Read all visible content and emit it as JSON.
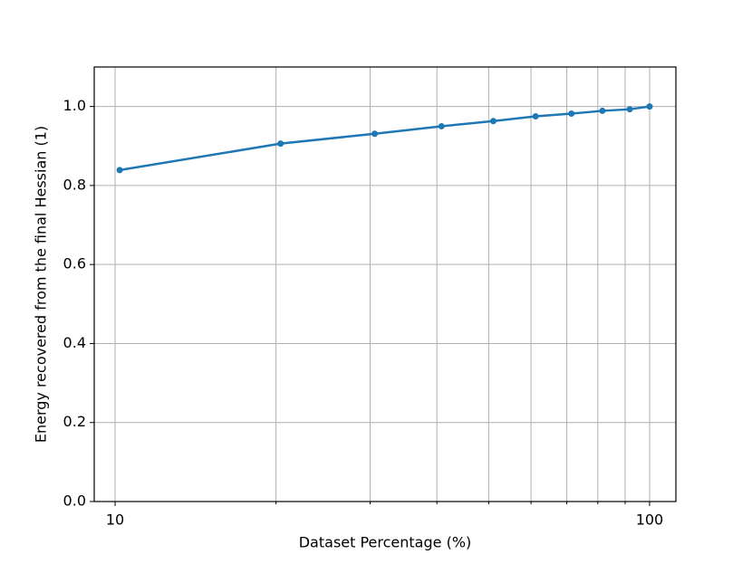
{
  "chart_data": {
    "type": "line",
    "x_label": "Dataset Percentage (%)",
    "y_label": "Energy recovered from the final Hessian (1)",
    "x": [
      10.2,
      20.4,
      30.6,
      40.8,
      51,
      61.2,
      71.4,
      81.6,
      91.8,
      100
    ],
    "series": [
      {
        "color": "#1f77b4",
        "values": [
          0.839,
          0.906,
          0.931,
          0.95,
          0.963,
          0.975,
          0.982,
          0.989,
          0.993,
          1.0
        ]
      }
    ],
    "xscale": "log",
    "xlim": [
      9.14,
      112
    ],
    "xticks": [
      10,
      100
    ],
    "xminorticks": [
      20,
      30,
      40,
      50,
      60,
      70,
      80,
      90
    ],
    "ylim": [
      0,
      1.1
    ],
    "yticks": [
      {
        "value": 0,
        "label": "0.0"
      },
      {
        "value": 0.2,
        "label": "0.2"
      },
      {
        "value": 0.4,
        "label": "0.4"
      },
      {
        "value": 0.6,
        "label": "0.6"
      },
      {
        "value": 0.8,
        "label": "0.8"
      },
      {
        "value": 1.0,
        "label": "1.0"
      }
    ],
    "grid": true
  }
}
